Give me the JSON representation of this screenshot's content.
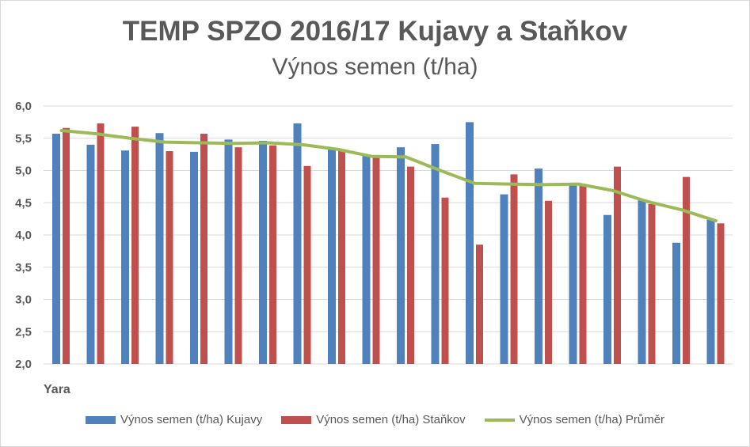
{
  "chart_data": {
    "type": "bar",
    "title": "TEMP SPZO 2016/17 Kujavy a Staňkov",
    "subtitle": "Výnos semen (t/ha)",
    "categories": [
      "Yara",
      "",
      "",
      "",
      "",
      "",
      "",
      "",
      "",
      "",
      "",
      "",
      "",
      "",
      "",
      "",
      "",
      "",
      "",
      ""
    ],
    "ylim": [
      2.0,
      6.0
    ],
    "yticks": [
      "2,0",
      "2,5",
      "3,0",
      "3,5",
      "4,0",
      "4,5",
      "5,0",
      "5,5",
      "6,0"
    ],
    "grid": true,
    "legend_position": "bottom",
    "series": [
      {
        "name": "Výnos semen (t/ha) Kujavy",
        "type": "bar",
        "color": "#4F81BD",
        "values": [
          5.57,
          5.4,
          5.31,
          5.58,
          5.29,
          5.48,
          5.46,
          5.73,
          5.35,
          5.24,
          5.36,
          5.41,
          5.75,
          4.63,
          5.03,
          4.79,
          4.31,
          4.55,
          3.88,
          4.25
        ]
      },
      {
        "name": "Výnos semen (t/ha) Staňkov",
        "type": "bar",
        "color": "#C0504D",
        "values": [
          5.66,
          5.73,
          5.68,
          5.3,
          5.57,
          5.36,
          5.39,
          5.07,
          5.31,
          5.2,
          5.06,
          4.58,
          3.85,
          4.94,
          4.53,
          4.79,
          5.06,
          4.48,
          4.9,
          4.18
        ]
      },
      {
        "name": "Výnos semen (t/ha) Průměr",
        "type": "line",
        "color": "#9BBB59",
        "values": [
          5.62,
          5.57,
          5.5,
          5.44,
          5.43,
          5.42,
          5.43,
          5.4,
          5.33,
          5.22,
          5.21,
          5.0,
          4.8,
          4.79,
          4.78,
          4.79,
          4.69,
          4.52,
          4.39,
          4.22
        ]
      }
    ]
  }
}
